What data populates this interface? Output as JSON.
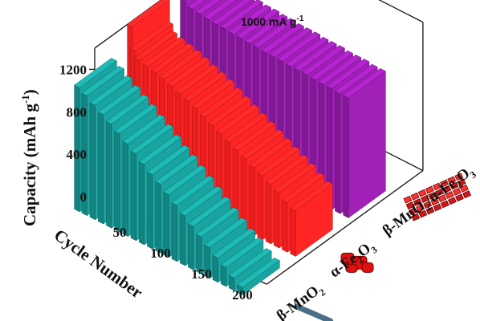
{
  "chart_data": {
    "type": "bar3d",
    "annotation": "1000 mA g",
    "annotation_sup": "-1",
    "ylabel": "Capacity (mAh g",
    "ylabel_sup": "-1",
    "ylabel_end": ")",
    "xlabel": "Cycle Number",
    "yticks": [
      "0",
      "400",
      "800",
      "1200"
    ],
    "xticks": [
      "50",
      "100",
      "150",
      "200"
    ],
    "ylim": [
      0,
      1400
    ],
    "xlim": [
      1,
      200
    ],
    "grid": false,
    "colors": {
      "beta_MnO2": "#168f8c",
      "alpha_Fe2O3": "#ff2020",
      "composite": "#8b1ca0",
      "composite_edge": "#ff00ff"
    },
    "series": [
      {
        "name": "β-MnO2",
        "color": "#168f8c",
        "x": [
          1,
          10,
          20,
          30,
          40,
          50,
          60,
          70,
          80,
          90,
          100,
          110,
          120,
          130,
          140,
          150,
          160,
          170,
          180,
          190,
          200
        ],
        "values": [
          1170,
          1130,
          1080,
          1030,
          980,
          930,
          870,
          820,
          760,
          700,
          650,
          590,
          530,
          470,
          410,
          350,
          290,
          230,
          180,
          120,
          70
        ]
      },
      {
        "name": "α-Fe2O3",
        "color": "#ff2020",
        "x": [
          1,
          5,
          10,
          20,
          30,
          40,
          50,
          60,
          70,
          80,
          90,
          100,
          110,
          120,
          130,
          140,
          150,
          160,
          170,
          180,
          190,
          200
        ],
        "values": [
          1380,
          1170,
          1100,
          1080,
          1060,
          1040,
          1010,
          980,
          950,
          920,
          880,
          840,
          800,
          760,
          720,
          680,
          640,
          600,
          560,
          520,
          470,
          430
        ]
      },
      {
        "name": "β-MnO2/α-Fe2O3",
        "color": "#8b1ca0",
        "x": [
          1,
          10,
          20,
          30,
          40,
          50,
          60,
          70,
          80,
          90,
          100,
          110,
          120,
          130,
          140,
          150,
          160,
          170,
          180,
          190,
          200
        ],
        "values": [
          1350,
          1220,
          1210,
          1200,
          1190,
          1190,
          1180,
          1180,
          1170,
          1170,
          1160,
          1160,
          1160,
          1150,
          1150,
          1150,
          1140,
          1140,
          1140,
          1130,
          1130
        ]
      }
    ]
  }
}
